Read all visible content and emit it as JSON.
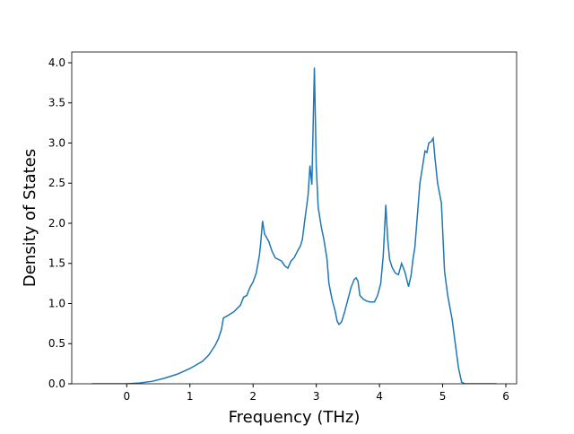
{
  "chart_data": {
    "type": "line",
    "xlabel": "Frequency (THz)",
    "ylabel": "Density of States",
    "x": [
      -0.55,
      0,
      0.2,
      0.4,
      0.6,
      0.8,
      1.0,
      1.2,
      1.3,
      1.4,
      1.45,
      1.5,
      1.53,
      1.6,
      1.7,
      1.8,
      1.85,
      1.9,
      1.95,
      2.0,
      2.05,
      2.1,
      2.12,
      2.15,
      2.18,
      2.25,
      2.3,
      2.35,
      2.45,
      2.5,
      2.55,
      2.6,
      2.65,
      2.7,
      2.75,
      2.78,
      2.82,
      2.87,
      2.9,
      2.93,
      2.97,
      3.0,
      3.03,
      3.08,
      3.12,
      3.17,
      3.2,
      3.25,
      3.3,
      3.33,
      3.36,
      3.4,
      3.45,
      3.5,
      3.55,
      3.6,
      3.63,
      3.66,
      3.69,
      3.75,
      3.8,
      3.85,
      3.92,
      3.97,
      4.02,
      4.06,
      4.1,
      4.13,
      4.16,
      4.2,
      4.25,
      4.3,
      4.35,
      4.4,
      4.46,
      4.5,
      4.53,
      4.56,
      4.6,
      4.64,
      4.68,
      4.72,
      4.75,
      4.78,
      4.82,
      4.85,
      4.88,
      4.92,
      4.98,
      5.03,
      5.08,
      5.15,
      5.2,
      5.25,
      5.3,
      5.35,
      5.85
    ],
    "series": [
      {
        "name": "DOS",
        "color": "#1f77b4",
        "values": [
          0,
          0,
          0.01,
          0.03,
          0.07,
          0.12,
          0.19,
          0.28,
          0.36,
          0.48,
          0.56,
          0.68,
          0.82,
          0.85,
          0.9,
          0.98,
          1.08,
          1.1,
          1.2,
          1.27,
          1.38,
          1.6,
          1.75,
          2.03,
          1.87,
          1.77,
          1.65,
          1.57,
          1.53,
          1.47,
          1.44,
          1.53,
          1.57,
          1.65,
          1.72,
          1.8,
          2.05,
          2.35,
          2.72,
          2.48,
          3.94,
          2.7,
          2.2,
          1.95,
          1.8,
          1.55,
          1.25,
          1.05,
          0.9,
          0.78,
          0.74,
          0.77,
          0.9,
          1.05,
          1.2,
          1.3,
          1.32,
          1.28,
          1.1,
          1.05,
          1.03,
          1.02,
          1.02,
          1.1,
          1.25,
          1.6,
          2.23,
          1.8,
          1.55,
          1.45,
          1.38,
          1.36,
          1.5,
          1.4,
          1.21,
          1.35,
          1.55,
          1.7,
          2.1,
          2.5,
          2.7,
          2.9,
          2.88,
          3.0,
          3.02,
          3.06,
          2.8,
          2.5,
          2.25,
          1.4,
          1.1,
          0.8,
          0.5,
          0.2,
          0.02,
          0,
          0
        ]
      }
    ],
    "xlim": [
      -0.87,
      6.17
    ],
    "xticks": [
      0,
      1,
      2,
      3,
      4,
      5,
      6
    ],
    "ylim": [
      0,
      4.134
    ],
    "yticks": [
      {
        "value": 0,
        "label": "0.0"
      },
      {
        "value": 0.5,
        "label": "0.5"
      },
      {
        "value": 1,
        "label": "1.0"
      },
      {
        "value": 1.5,
        "label": "1.5"
      },
      {
        "value": 2,
        "label": "2.0"
      },
      {
        "value": 2.5,
        "label": "2.5"
      },
      {
        "value": 3,
        "label": "3.0"
      },
      {
        "value": 3.5,
        "label": "3.5"
      },
      {
        "value": 4,
        "label": "4.0"
      }
    ]
  }
}
